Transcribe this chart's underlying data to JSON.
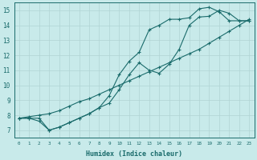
{
  "bg_color": "#c8eaea",
  "grid_color": "#b0d4d4",
  "line_color": "#1a6b6b",
  "xlabel": "Humidex (Indice chaleur)",
  "ylabel": "",
  "xlim": [
    -0.5,
    23.5
  ],
  "ylim": [
    6.5,
    15.5
  ],
  "xticks": [
    0,
    1,
    2,
    3,
    4,
    5,
    6,
    7,
    8,
    9,
    10,
    11,
    12,
    13,
    14,
    15,
    16,
    17,
    18,
    19,
    20,
    21,
    22,
    23
  ],
  "yticks": [
    7,
    8,
    9,
    10,
    11,
    12,
    13,
    14,
    15
  ],
  "curve1_x": [
    0,
    1,
    2,
    3,
    4,
    5,
    6,
    7,
    8,
    9,
    10,
    11,
    12,
    13,
    14,
    15,
    16,
    17,
    18,
    19,
    20,
    21,
    22,
    23
  ],
  "curve1_y": [
    7.8,
    7.8,
    7.6,
    7.0,
    7.2,
    7.5,
    7.8,
    8.1,
    8.5,
    9.3,
    10.7,
    11.6,
    12.2,
    13.7,
    14.0,
    14.4,
    14.4,
    14.5,
    15.1,
    15.2,
    14.9,
    14.3,
    14.3,
    14.3
  ],
  "curve2_x": [
    0,
    1,
    2,
    3,
    4,
    5,
    6,
    7,
    8,
    9,
    10,
    11,
    12,
    13,
    14,
    15,
    16,
    17,
    18,
    19,
    20,
    21,
    22,
    23
  ],
  "curve2_y": [
    7.8,
    7.8,
    7.8,
    7.0,
    7.2,
    7.5,
    7.8,
    8.1,
    8.5,
    8.8,
    9.7,
    10.7,
    11.5,
    11.0,
    10.8,
    11.4,
    12.4,
    14.0,
    14.55,
    14.6,
    15.0,
    14.8,
    14.3,
    14.3
  ],
  "curve3_x": [
    0,
    1,
    2,
    3,
    4,
    5,
    6,
    7,
    8,
    9,
    10,
    11,
    12,
    13,
    14,
    15,
    16,
    17,
    18,
    19,
    20,
    21,
    22,
    23
  ],
  "curve3_y": [
    7.8,
    7.9,
    8.0,
    8.1,
    8.3,
    8.6,
    8.9,
    9.1,
    9.4,
    9.7,
    10.0,
    10.3,
    10.6,
    10.9,
    11.2,
    11.5,
    11.8,
    12.1,
    12.4,
    12.8,
    13.2,
    13.6,
    14.0,
    14.4
  ]
}
